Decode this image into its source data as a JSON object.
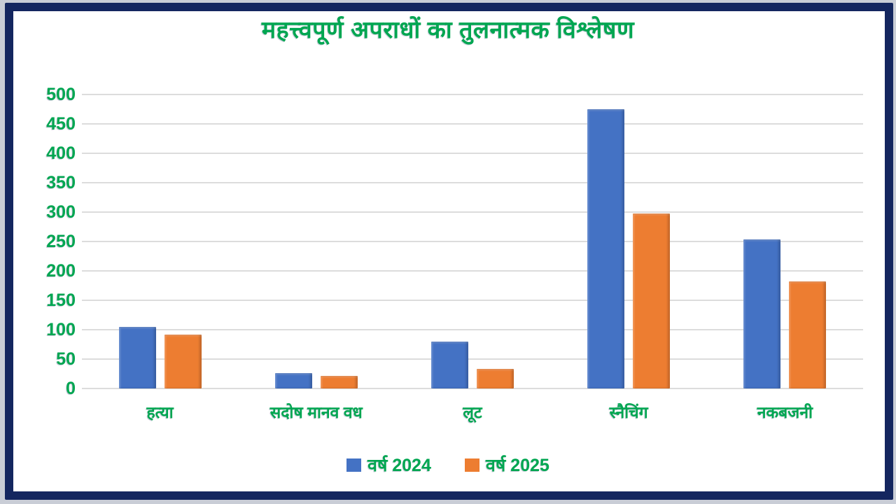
{
  "frame": {
    "border_color": "#14265f",
    "outer_edge_color": "#c9cdd6",
    "background": "#ffffff"
  },
  "text_color": "#00a651",
  "chart_data": {
    "type": "bar",
    "title": "महत्त्वपूर्ण अपराधों का तुलनात्मक विश्लेषण",
    "categories": [
      "हत्या",
      "सदोष मानव वध",
      "लूट",
      "स्नैचिंग",
      "नकबजनी"
    ],
    "series": [
      {
        "name": "वर्ष 2024",
        "color": "#4472c4",
        "values": [
          105,
          26,
          80,
          475,
          253
        ]
      },
      {
        "name": "वर्ष 2025",
        "color": "#ed7d31",
        "values": [
          92,
          22,
          33,
          298,
          182
        ]
      }
    ],
    "xlabel": "",
    "ylabel": "",
    "ylim": [
      0,
      500
    ],
    "yticks": [
      0,
      50,
      100,
      150,
      200,
      250,
      300,
      350,
      400,
      450,
      500
    ],
    "grid": "horizontal",
    "gridline_color": "#dcdcdc",
    "legend_position": "bottom",
    "axis_label_color": "#00a651"
  }
}
